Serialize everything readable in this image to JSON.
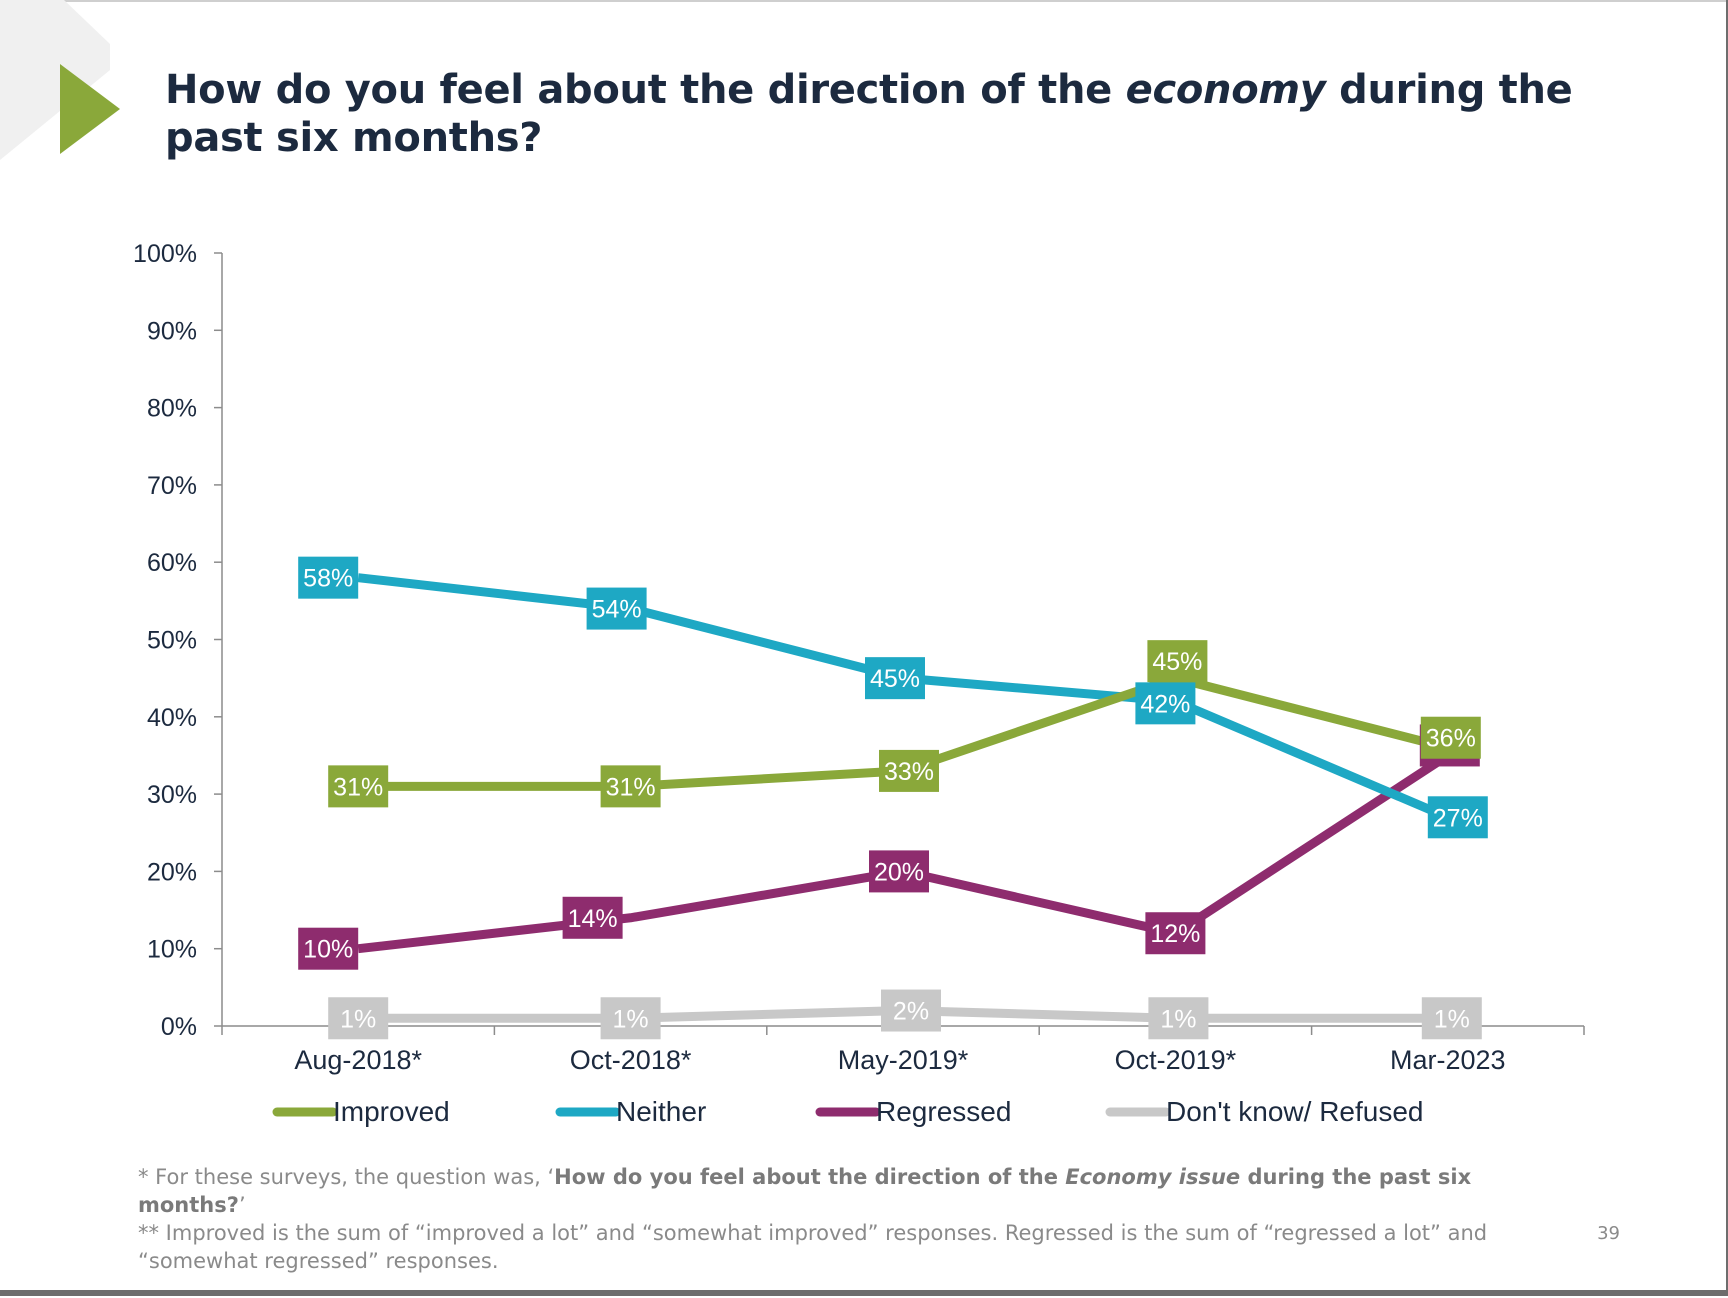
{
  "slide": {
    "title_parts": [
      "How do you feel about the direction of the ",
      "economy",
      " during the past six months?"
    ],
    "page_number": "39",
    "footnotes": {
      "note1_prefix": "* For these surveys, the question was, ‘",
      "note1_bold_a": "How do you feel about the direction of the ",
      "note1_bold_italic": "Economy issue",
      "note1_bold_b": " during the past six months?",
      "note1_suffix": "’",
      "note2": "**  Improved is the sum of “improved a lot” and “somewhat improved” responses. Regressed is the sum of “regressed a lot” and “somewhat regressed” responses."
    },
    "colors": {
      "accent_arrow": "#8aa83a",
      "title": "#1c2a3f",
      "footnote": "#8a8a8a"
    }
  },
  "chart_data": {
    "type": "line",
    "categories": [
      "Aug-2018*",
      "Oct-2018*",
      "May-2019*",
      "Oct-2019*",
      "Mar-2023"
    ],
    "series": [
      {
        "name": "Improved",
        "color": "#8aa83a",
        "values": [
          31,
          31,
          33,
          45,
          36
        ],
        "labels": [
          "31%",
          "31%",
          "33%",
          "45%",
          "36%"
        ]
      },
      {
        "name": "Neither",
        "color": "#1ea8c4",
        "values": [
          58,
          54,
          45,
          42,
          27
        ],
        "labels": [
          "58%",
          "54%",
          "45%",
          "42%",
          "27%"
        ]
      },
      {
        "name": "Regressed",
        "color": "#8e2c6e",
        "values": [
          10,
          14,
          20,
          12,
          35
        ],
        "labels": [
          "10%",
          "14%",
          "20%",
          "12%",
          "35%"
        ]
      },
      {
        "name": "Don't know/ Refused",
        "color": "#c8c8c8",
        "values": [
          1,
          1,
          2,
          1,
          1
        ],
        "labels": [
          "1%",
          "1%",
          "2%",
          "1%",
          "1%"
        ]
      }
    ],
    "yticks": [
      "0%",
      "10%",
      "20%",
      "30%",
      "40%",
      "50%",
      "60%",
      "70%",
      "80%",
      "90%",
      "100%"
    ],
    "ylim": [
      0,
      100
    ],
    "grid": false,
    "legend_position": "bottom"
  }
}
